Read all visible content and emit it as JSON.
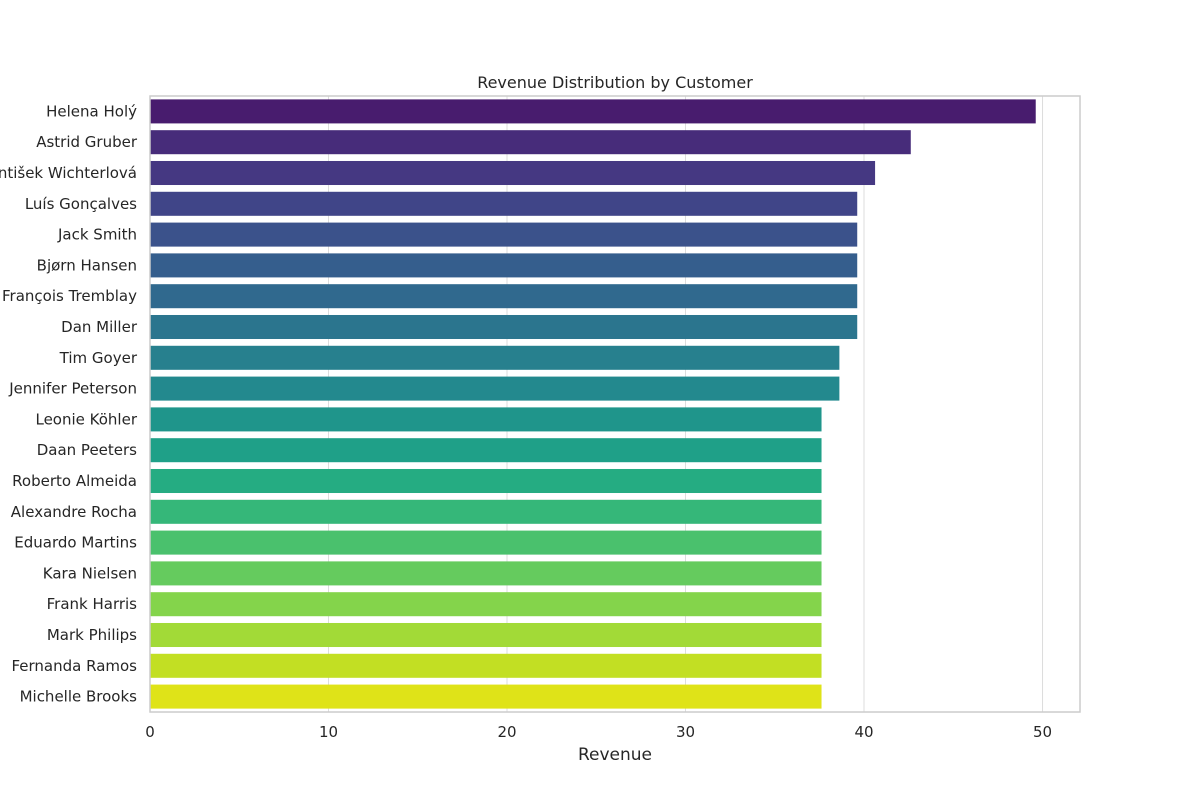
{
  "chart_data": {
    "type": "bar",
    "orientation": "horizontal",
    "title": "Revenue Distribution by Customer",
    "xlabel": "Revenue",
    "ylabel": "",
    "xlim": [
      0,
      52.1
    ],
    "xticks": [
      0,
      10,
      20,
      30,
      40,
      50
    ],
    "grid": true,
    "categories": [
      "Helena Holý",
      "Astrid Gruber",
      "František Wichterlová",
      "Luís Gonçalves",
      "Jack Smith",
      "Bjørn Hansen",
      "François Tremblay",
      "Dan Miller",
      "Tim Goyer",
      "Jennifer Peterson",
      "Leonie Köhler",
      "Daan Peeters",
      "Roberto Almeida",
      "Alexandre Rocha",
      "Eduardo Martins",
      "Kara Nielsen",
      "Frank Harris",
      "Mark Philips",
      "Fernanda Ramos",
      "Michelle Brooks"
    ],
    "values": [
      49.62,
      42.62,
      40.62,
      39.62,
      39.62,
      39.62,
      39.62,
      39.62,
      38.62,
      38.62,
      37.62,
      37.62,
      37.62,
      37.62,
      37.62,
      37.62,
      37.62,
      37.62,
      37.62,
      37.62
    ],
    "colors": [
      "#481c6e",
      "#472c7a",
      "#453882",
      "#404588",
      "#3b528b",
      "#355e8d",
      "#30698e",
      "#2b758e",
      "#27808e",
      "#23898e",
      "#1f958b",
      "#1fa088",
      "#25ac82",
      "#35b779",
      "#4ac16d",
      "#65cb5e",
      "#84d44b",
      "#a2da37",
      "#c2df23",
      "#dfe318"
    ]
  }
}
